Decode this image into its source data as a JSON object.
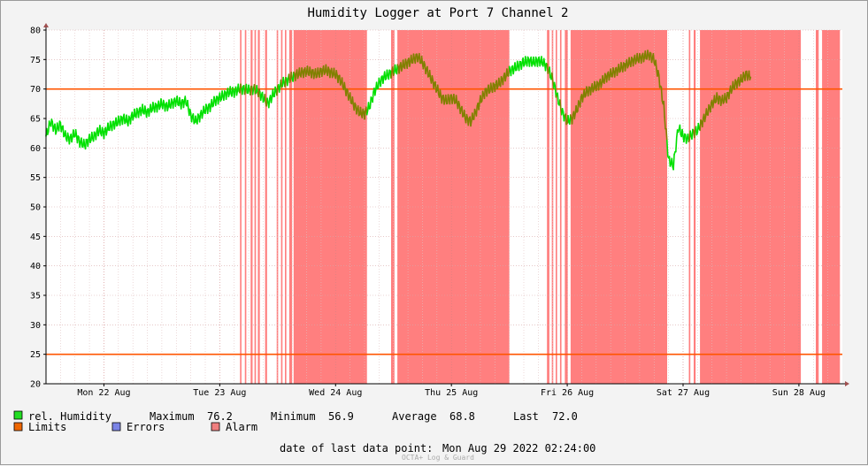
{
  "chart_data": {
    "type": "line",
    "title": "Humidity Logger at Port 7 Channel 2",
    "xlabel": "",
    "ylabel": "",
    "ylim": [
      20,
      80
    ],
    "yticks": [
      20,
      25,
      30,
      35,
      40,
      45,
      50,
      55,
      60,
      65,
      70,
      75,
      80
    ],
    "xlim": [
      0,
      165
    ],
    "x_unit_note": "",
    "xticks": [
      {
        "x": 12,
        "label": "Mon 22 Aug"
      },
      {
        "x": 36,
        "label": "Tue 23 Aug"
      },
      {
        "x": 60,
        "label": "Wed 24 Aug"
      },
      {
        "x": 84,
        "label": "Thu 25 Aug"
      },
      {
        "x": 108,
        "label": "Fri 26 Aug"
      },
      {
        "x": 132,
        "label": "Sat 27 Aug"
      },
      {
        "x": 156,
        "label": "Sun 28 Aug"
      }
    ],
    "grid": true,
    "limits": [
      25,
      70
    ],
    "series": [
      {
        "name": "rel. Humidity",
        "color": "#00e000",
        "points": [
          [
            0,
            62
          ],
          [
            1,
            64.5
          ],
          [
            2,
            63
          ],
          [
            3,
            64
          ],
          [
            4,
            62
          ],
          [
            5,
            61.5
          ],
          [
            6,
            62.5
          ],
          [
            7,
            61
          ],
          [
            8,
            60.5
          ],
          [
            9,
            61.5
          ],
          [
            10,
            62
          ],
          [
            11,
            63
          ],
          [
            12,
            62.5
          ],
          [
            13,
            63.5
          ],
          [
            14,
            64
          ],
          [
            15,
            64.5
          ],
          [
            16,
            65
          ],
          [
            17,
            64.5
          ],
          [
            18,
            65.5
          ],
          [
            19,
            66
          ],
          [
            20,
            66.5
          ],
          [
            21,
            66
          ],
          [
            22,
            66.8
          ],
          [
            23,
            67
          ],
          [
            24,
            67.5
          ],
          [
            25,
            67
          ],
          [
            26,
            67.5
          ],
          [
            27,
            68
          ],
          [
            28,
            67.5
          ],
          [
            29,
            68
          ],
          [
            30,
            65.5
          ],
          [
            31,
            64.5
          ],
          [
            32,
            65.5
          ],
          [
            33,
            66.5
          ],
          [
            34,
            67
          ],
          [
            35,
            68
          ],
          [
            36,
            68.5
          ],
          [
            37,
            69
          ],
          [
            38,
            69.5
          ],
          [
            39,
            69.5
          ],
          [
            40,
            70
          ],
          [
            41,
            70
          ],
          [
            42,
            69.8
          ],
          [
            43,
            70
          ],
          [
            44,
            69.5
          ],
          [
            45,
            68.5
          ],
          [
            46,
            67.5
          ],
          [
            47,
            69
          ],
          [
            48,
            70
          ],
          [
            49,
            71
          ],
          [
            50,
            71.5
          ],
          [
            51,
            72
          ],
          [
            52,
            72.5
          ],
          [
            53,
            72.8
          ],
          [
            54,
            73
          ],
          [
            55,
            72.8
          ],
          [
            56,
            72.5
          ],
          [
            57,
            73
          ],
          [
            58,
            73.2
          ],
          [
            59,
            72.8
          ],
          [
            60,
            72.5
          ],
          [
            61,
            71.5
          ],
          [
            62,
            70
          ],
          [
            63,
            68.5
          ],
          [
            64,
            67
          ],
          [
            65,
            66
          ],
          [
            66,
            65.8
          ],
          [
            67,
            67
          ],
          [
            68,
            69.5
          ],
          [
            69,
            71
          ],
          [
            70,
            72
          ],
          [
            71,
            72.5
          ],
          [
            72,
            73
          ],
          [
            73,
            73.5
          ],
          [
            74,
            74
          ],
          [
            75,
            74.5
          ],
          [
            76,
            75
          ],
          [
            77,
            75.5
          ],
          [
            78,
            74.5
          ],
          [
            79,
            73
          ],
          [
            80,
            71.5
          ],
          [
            81,
            70
          ],
          [
            82,
            68.5
          ],
          [
            83,
            68
          ],
          [
            84,
            68.5
          ],
          [
            85,
            68
          ],
          [
            86,
            66.5
          ],
          [
            87,
            65
          ],
          [
            88,
            64.5
          ],
          [
            89,
            66
          ],
          [
            90,
            68
          ],
          [
            91,
            69.5
          ],
          [
            92,
            70
          ],
          [
            93,
            70.5
          ],
          [
            94,
            71
          ],
          [
            95,
            72
          ],
          [
            96,
            73
          ],
          [
            97,
            73.5
          ],
          [
            98,
            74
          ],
          [
            99,
            74.5
          ],
          [
            100,
            74.8
          ],
          [
            101,
            74.5
          ],
          [
            102,
            74.8
          ],
          [
            103,
            74.5
          ],
          [
            104,
            73.5
          ],
          [
            105,
            71.5
          ],
          [
            106,
            68.5
          ],
          [
            107,
            66
          ],
          [
            108,
            64.5
          ],
          [
            109,
            65
          ],
          [
            110,
            66.5
          ],
          [
            111,
            68.5
          ],
          [
            112,
            69.5
          ],
          [
            113,
            70
          ],
          [
            114,
            70.5
          ],
          [
            115,
            71
          ],
          [
            116,
            72
          ],
          [
            117,
            72.5
          ],
          [
            118,
            73
          ],
          [
            119,
            73.5
          ],
          [
            120,
            74
          ],
          [
            121,
            74.5
          ],
          [
            122,
            75
          ],
          [
            123,
            75.2
          ],
          [
            124,
            75.5
          ],
          [
            125,
            75.8
          ],
          [
            126,
            75
          ],
          [
            127,
            72
          ],
          [
            128,
            67
          ],
          [
            129,
            58
          ],
          [
            130,
            57
          ],
          [
            131,
            63.5
          ],
          [
            132,
            62
          ],
          [
            133,
            61.5
          ],
          [
            134,
            62.5
          ],
          [
            135,
            63
          ],
          [
            136,
            64.5
          ],
          [
            137,
            66
          ],
          [
            138,
            67.5
          ],
          [
            139,
            68.5
          ],
          [
            140,
            68
          ],
          [
            141,
            68.5
          ],
          [
            142,
            70
          ],
          [
            143,
            71
          ],
          [
            144,
            71.5
          ],
          [
            145,
            72.5
          ],
          [
            146,
            72
          ]
        ]
      }
    ],
    "alarm_bands": [
      [
        40.2,
        40.5
      ],
      [
        41.2,
        41.5
      ],
      [
        42.4,
        42.8
      ],
      [
        43.2,
        43.5
      ],
      [
        43.9,
        44.3
      ],
      [
        45.4,
        45.8
      ],
      [
        47.8,
        48.1
      ],
      [
        48.7,
        49.0
      ],
      [
        49.5,
        49.8
      ],
      [
        50.4,
        51.0
      ],
      [
        51.3,
        66.5
      ],
      [
        71.5,
        72.2
      ],
      [
        72.8,
        96.0
      ],
      [
        103.8,
        104.3
      ],
      [
        104.8,
        105.1
      ],
      [
        105.6,
        105.9
      ],
      [
        106.5,
        106.8
      ],
      [
        107.5,
        108.1
      ],
      [
        108.7,
        128.7
      ],
      [
        133.2,
        133.5
      ],
      [
        134.2,
        134.6
      ],
      [
        135.5,
        156.4
      ],
      [
        159.5,
        160.1
      ],
      [
        160.8,
        164.5
      ]
    ]
  },
  "legend": {
    "humidity_label": "rel. Humidity",
    "humidity_color": "#22dd22",
    "limits_label": "Limits",
    "limits_color": "#ee6600",
    "errors_label": "Errors",
    "errors_color": "#7b84e6",
    "alarm_label": "Alarm",
    "alarm_color": "#f07f7f",
    "maximum_label": "Maximum",
    "maximum_value": "76.2",
    "minimum_label": "Minimum",
    "minimum_value": "56.9",
    "average_label": "Average",
    "average_value": "68.8",
    "last_label": "Last",
    "last_value": "72.0"
  },
  "footer": {
    "last_point_label": "date of last data point:",
    "last_point_value": "Mon Aug 29 2022 02:24:00",
    "watermark": "OCTA+ Log & Guard"
  },
  "colors": {
    "alarm_fill": "#ff7f7f",
    "limit_line": "#ff5500",
    "humidity_line": "#00e000",
    "humidity_in_alarm": "#808000",
    "axis": "#000000",
    "arrow": "#a05050"
  }
}
